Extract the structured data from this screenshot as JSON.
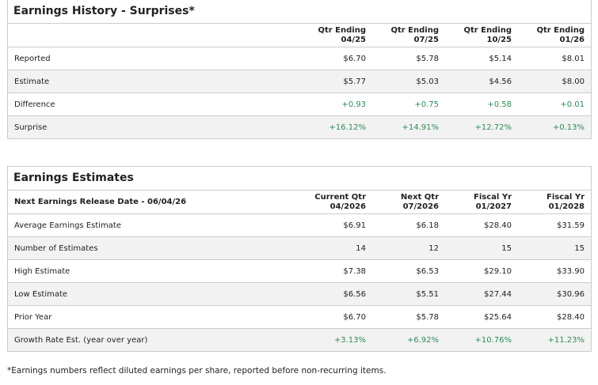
{
  "history": {
    "title": "Earnings History - Surprises*",
    "columns": [
      [
        "Qtr Ending",
        "04/25"
      ],
      [
        "Qtr Ending",
        "07/25"
      ],
      [
        "Qtr Ending",
        "10/25"
      ],
      [
        "Qtr Ending",
        "01/26"
      ]
    ],
    "rows": [
      {
        "label": "Reported",
        "values": [
          "$6.70",
          "$5.78",
          "$5.14",
          "$8.01"
        ],
        "positive": false
      },
      {
        "label": "Estimate",
        "values": [
          "$5.77",
          "$5.03",
          "$4.56",
          "$8.00"
        ],
        "positive": false
      },
      {
        "label": "Difference",
        "values": [
          "+0.93",
          "+0.75",
          "+0.58",
          "+0.01"
        ],
        "positive": true
      },
      {
        "label": "Surprise",
        "values": [
          "+16.12%",
          "+14.91%",
          "+12.72%",
          "+0.13%"
        ],
        "positive": true
      }
    ]
  },
  "estimates": {
    "title": "Earnings Estimates",
    "release_label": "Next Earnings Release Date - 06/04/26",
    "columns": [
      [
        "Current Qtr",
        "04/2026"
      ],
      [
        "Next Qtr",
        "07/2026"
      ],
      [
        "Fiscal Yr",
        "01/2027"
      ],
      [
        "Fiscal Yr",
        "01/2028"
      ]
    ],
    "rows": [
      {
        "label": "Average Earnings Estimate",
        "values": [
          "$6.91",
          "$6.18",
          "$28.40",
          "$31.59"
        ],
        "positive": false
      },
      {
        "label": "Number of Estimates",
        "values": [
          "14",
          "12",
          "15",
          "15"
        ],
        "positive": false
      },
      {
        "label": "High Estimate",
        "values": [
          "$7.38",
          "$6.53",
          "$29.10",
          "$33.90"
        ],
        "positive": false
      },
      {
        "label": "Low Estimate",
        "values": [
          "$6.56",
          "$5.51",
          "$27.44",
          "$30.96"
        ],
        "positive": false
      },
      {
        "label": "Prior Year",
        "values": [
          "$6.70",
          "$5.78",
          "$25.64",
          "$28.40"
        ],
        "positive": false
      },
      {
        "label": "Growth Rate Est. (year over year)",
        "values": [
          "+3.13%",
          "+6.92%",
          "+10.76%",
          "+11.23%"
        ],
        "positive": true
      }
    ]
  },
  "footnote": "*Earnings numbers reflect diluted earnings per share, reported before non-recurring items.",
  "colors": {
    "positive": "#2e8b57",
    "alt_row": "#f2f2f2",
    "border": "#cccccc"
  }
}
